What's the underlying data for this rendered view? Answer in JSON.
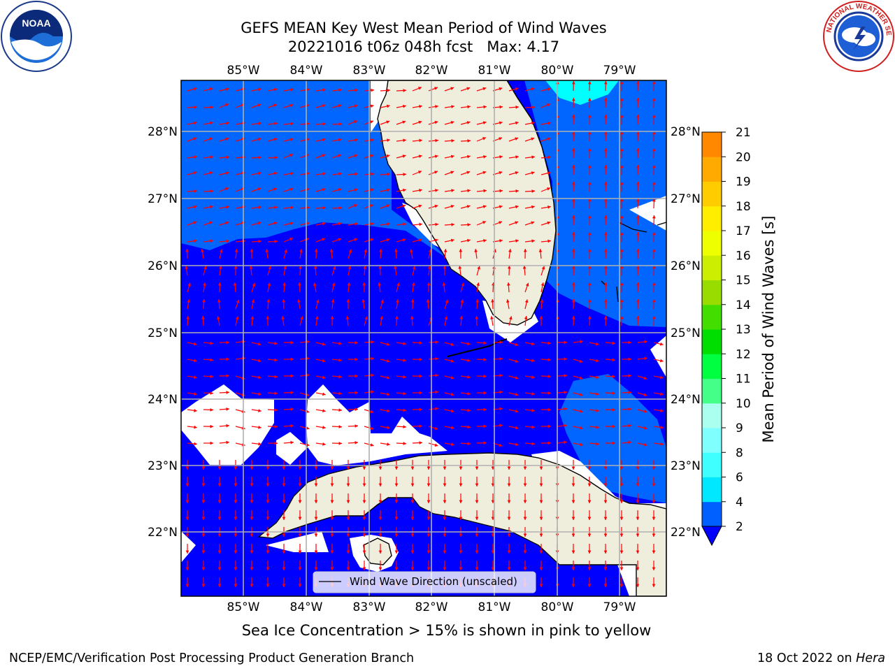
{
  "title": {
    "line1": "GEFS MEAN Key West Mean Period of Wind Waves",
    "line2": "20221016 t06z 048h fcst   Max: 4.17"
  },
  "map": {
    "lon_labels": [
      "85°W",
      "84°W",
      "83°W",
      "82°W",
      "81°W",
      "80°W",
      "79°W"
    ],
    "lat_labels": [
      "28°N",
      "27°N",
      "26°N",
      "25°N",
      "24°N",
      "23°N",
      "22°N"
    ],
    "legend_text": "Wind Wave Direction (unscaled)",
    "colors": {
      "land": "#efeddc",
      "band_2_4": "#0000ff",
      "band_4_6": "#0066ff",
      "band_6_8": "#00ffff",
      "arrow": "#ff0000"
    },
    "arrow_direction_hint": "arrows in north half point east-north-east; south half point south"
  },
  "colorbar": {
    "label": "Mean Period of Wind Waves [s]",
    "ticks": [
      "2",
      "4",
      "6",
      "8",
      "9",
      "10",
      "11",
      "12",
      "13",
      "14",
      "15",
      "16",
      "17",
      "18",
      "19",
      "20",
      "21"
    ],
    "colors": [
      "#0060ff",
      "#00e8ff",
      "#40ffff",
      "#80ffff",
      "#aaffee",
      "#44ff88",
      "#00ff40",
      "#00dd00",
      "#44dd00",
      "#99dd00",
      "#ccee00",
      "#eeff00",
      "#ffee00",
      "#ffcc00",
      "#ffaa00",
      "#ff8800",
      "#ff5500",
      "#ff2a00",
      "#ff0000"
    ],
    "extend_color": "#0000ff"
  },
  "logos": {
    "noaa_text": "NOAA",
    "nws_text": "NATIONAL WEATHER SERVICE"
  },
  "note": "Sea Ice Concentration > 15% is shown in pink to yellow",
  "footer": {
    "left": "NCEP/EMC/Verification Post Processing Product Generation Branch",
    "right_prefix": "18 Oct 2022 on ",
    "right_italic": "Hera"
  }
}
